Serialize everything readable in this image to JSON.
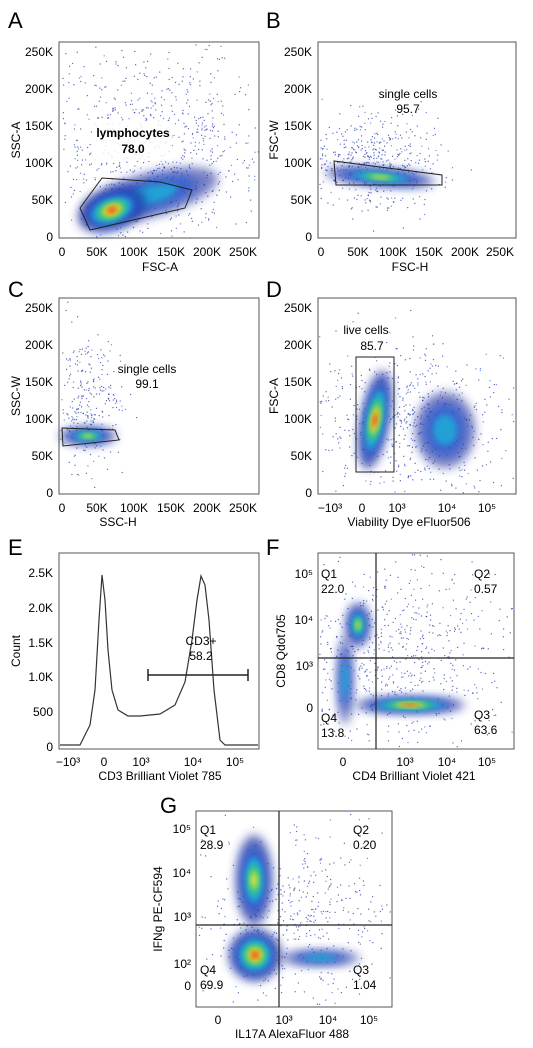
{
  "colors": {
    "frame": "#555555",
    "gate": "#222222",
    "density": [
      "#1f2a9c",
      "#2f5fd0",
      "#1fb0d8",
      "#3fd06a",
      "#e8e23a",
      "#f08a1c",
      "#e02a1a"
    ]
  },
  "chart_data": [
    {
      "id": "A",
      "type": "scatter",
      "panel_label": "A",
      "xlabel": "FSC-A",
      "ylabel": "SSC-A",
      "xlim": [
        0,
        260000
      ],
      "ylim": [
        0,
        260000
      ],
      "x_ticks": [
        "0",
        "50K",
        "100K",
        "150K",
        "200K",
        "250K"
      ],
      "y_ticks": [
        "0",
        "50K",
        "100K",
        "150K",
        "200K",
        "250K"
      ],
      "gate": {
        "name": "lymphocytes",
        "percent": "78.0",
        "polygon": [
          [
            30000,
            40000
          ],
          [
            60000,
            85000
          ],
          [
            140000,
            75000
          ],
          [
            180000,
            62000
          ],
          [
            170000,
            38000
          ],
          [
            40000,
            8000
          ]
        ]
      }
    },
    {
      "id": "B",
      "type": "scatter",
      "panel_label": "B",
      "xlabel": "FSC-H",
      "ylabel": "FSC-W",
      "xlim": [
        0,
        260000
      ],
      "ylim": [
        0,
        260000
      ],
      "x_ticks": [
        "0",
        "50K",
        "100K",
        "150K",
        "200K",
        "250K"
      ],
      "y_ticks": [
        "0",
        "50K",
        "100K",
        "150K",
        "200K",
        "250K"
      ],
      "gate": {
        "name": "single cells",
        "percent": "95.7",
        "polygon": [
          [
            15000,
            101000
          ],
          [
            175000,
            84000
          ],
          [
            175000,
            68000
          ],
          [
            20000,
            70000
          ]
        ]
      }
    },
    {
      "id": "C",
      "type": "scatter",
      "panel_label": "C",
      "xlabel": "SSC-H",
      "ylabel": "SSC-W",
      "xlim": [
        0,
        260000
      ],
      "ylim": [
        0,
        260000
      ],
      "x_ticks": [
        "0",
        "50K",
        "100K",
        "150K",
        "200K",
        "250K"
      ],
      "y_ticks": [
        "0",
        "50K",
        "100K",
        "150K",
        "200K",
        "250K"
      ],
      "gate": {
        "name": "single cells",
        "percent": "99.1",
        "polygon": [
          [
            3000,
            87000
          ],
          [
            75000,
            84000
          ],
          [
            80000,
            69000
          ],
          [
            5000,
            64000
          ]
        ]
      }
    },
    {
      "id": "D",
      "type": "scatter",
      "panel_label": "D",
      "xlabel": "Viability Dye eFluor506",
      "ylabel": "FSC-A",
      "xlim": [
        0,
        260000
      ],
      "ylim": [
        0,
        260000
      ],
      "x_ticks": [
        "−10³",
        "0",
        "10³",
        "10⁴",
        "10⁵"
      ],
      "y_ticks": [
        "0",
        "50K",
        "100K",
        "150K",
        "200K",
        "250K"
      ],
      "gate": {
        "name": "live cells",
        "percent": "85.7"
      }
    },
    {
      "id": "E",
      "type": "line",
      "panel_label": "E",
      "xlabel": "CD3 Brilliant Violet 785",
      "ylabel": "Count",
      "ylim": [
        0,
        2700
      ],
      "x_ticks": [
        "−10³",
        "0",
        "10³",
        "10⁴",
        "10⁵"
      ],
      "y_ticks": [
        "0",
        "500",
        "1.0K",
        "1.5K",
        "2.0K",
        "2.5K"
      ],
      "gate": {
        "name": "CD3+",
        "percent": "58.2"
      }
    },
    {
      "id": "F",
      "type": "scatter",
      "panel_label": "F",
      "xlabel": "CD4 Brilliant Violet 421",
      "ylabel": "CD8 Qdot705",
      "x_ticks": [
        "0",
        "10³",
        "10⁴",
        "10⁵"
      ],
      "y_ticks": [
        "0",
        "10³",
        "10⁴",
        "10⁵"
      ],
      "quadrants": [
        {
          "name": "Q1",
          "percent": "22.0"
        },
        {
          "name": "Q2",
          "percent": "0.57"
        },
        {
          "name": "Q3",
          "percent": "63.6"
        },
        {
          "name": "Q4",
          "percent": "13.8"
        }
      ]
    },
    {
      "id": "G",
      "type": "scatter",
      "panel_label": "G",
      "xlabel": "IL17A AlexaFluor 488",
      "ylabel": "IFNg PE-CF594",
      "x_ticks": [
        "0",
        "10³",
        "10⁴",
        "10⁵"
      ],
      "y_ticks": [
        "0",
        "10²",
        "10³",
        "10⁴",
        "10⁵"
      ],
      "quadrants": [
        {
          "name": "Q1",
          "percent": "28.9"
        },
        {
          "name": "Q2",
          "percent": "0.20"
        },
        {
          "name": "Q3",
          "percent": "1.04"
        },
        {
          "name": "Q4",
          "percent": "69.9"
        }
      ]
    }
  ]
}
